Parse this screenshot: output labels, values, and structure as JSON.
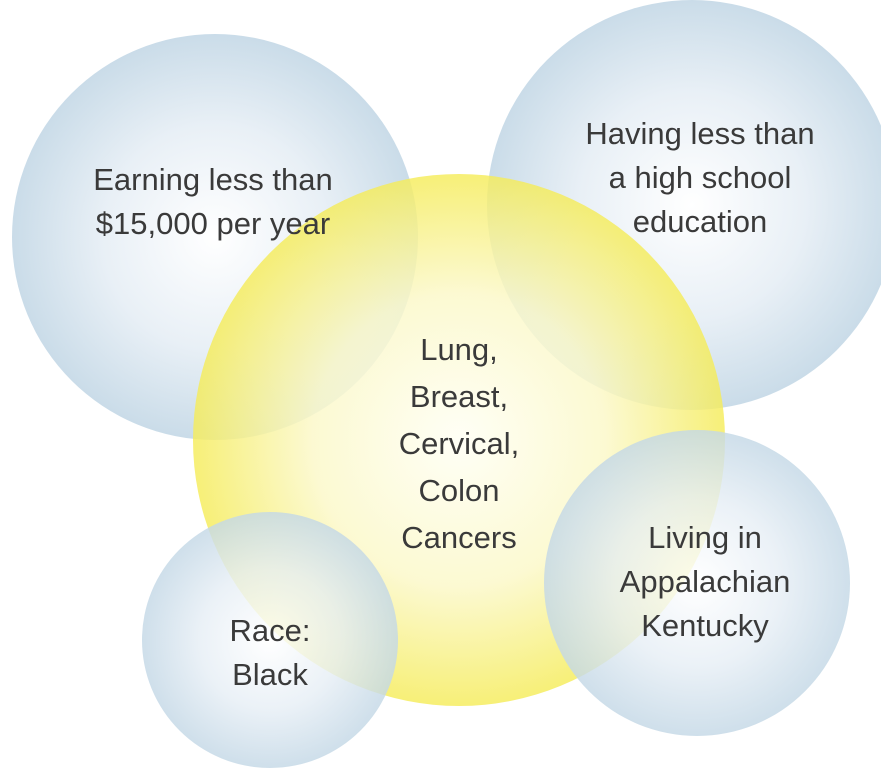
{
  "center": {
    "lines": [
      "Lung,",
      "Breast,",
      "Cervical,",
      "Colon",
      "Cancers"
    ]
  },
  "factors": [
    {
      "lines": [
        "Earning less than",
        "$15,000 per year"
      ]
    },
    {
      "lines": [
        "Having less than",
        "a high school",
        "education"
      ]
    },
    {
      "lines": [
        "Living in",
        "Appalachian",
        "Kentucky"
      ]
    },
    {
      "lines": [
        "Race:",
        "Black"
      ]
    }
  ]
}
